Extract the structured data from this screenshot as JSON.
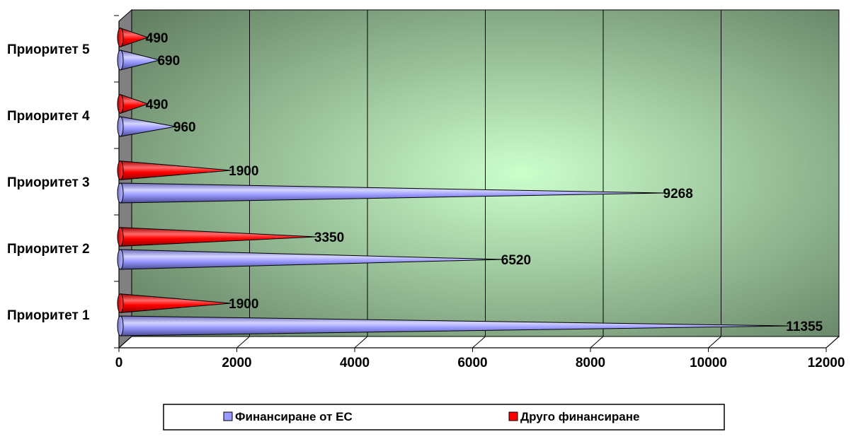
{
  "chart_data": {
    "type": "bar",
    "orientation": "horizontal",
    "style": "3d-cone",
    "categories": [
      "Приоритет 1",
      "Приоритет 2",
      "Приоритет 3",
      "Приоритет 4",
      "Приоритет 5"
    ],
    "series": [
      {
        "name": "Финансиране от ЕС",
        "color": "#9999ff",
        "values": [
          11355,
          6520,
          9268,
          960,
          690
        ]
      },
      {
        "name": "Друго финансиране",
        "color": "#ff0000",
        "values": [
          1900,
          3350,
          1900,
          490,
          490
        ]
      }
    ],
    "xlim": [
      0,
      12000
    ],
    "xticks": [
      "0",
      "2000",
      "4000",
      "6000",
      "8000",
      "10000",
      "12000"
    ],
    "grid": true,
    "legend_position": "bottom",
    "colors": {
      "plot_bg_light": "#ccffcc",
      "plot_bg_dark": "#5f7a5f",
      "side_wall": "#808080"
    }
  }
}
